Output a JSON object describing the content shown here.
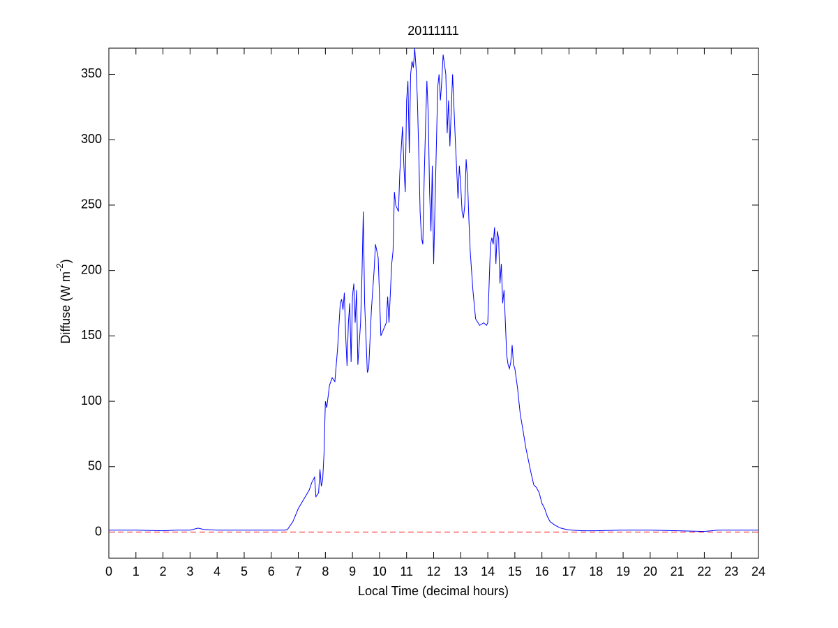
{
  "chart_data": {
    "type": "line",
    "title": "20111111",
    "xlabel": "Local Time (decimal hours)",
    "ylabel": {
      "text": "Diffuse (W m",
      "superscript": "-2",
      "suffix": ")"
    },
    "xlim": [
      0,
      24
    ],
    "xticks": [
      0,
      1,
      2,
      3,
      4,
      5,
      6,
      7,
      8,
      9,
      10,
      11,
      12,
      13,
      14,
      15,
      16,
      17,
      18,
      19,
      20,
      21,
      22,
      23,
      24
    ],
    "ylim": [
      -20,
      370
    ],
    "yticks": [
      0,
      50,
      100,
      150,
      200,
      250,
      300,
      350
    ],
    "grid": false,
    "reference_line": {
      "value": 0,
      "color": "#ff0000",
      "style": "dashed"
    },
    "series": [
      {
        "color": "#0000ff",
        "x": [
          0,
          1,
          2,
          2.5,
          3,
          3.3,
          3.5,
          4,
          5,
          6,
          6.5,
          6.6,
          6.8,
          7,
          7.2,
          7.4,
          7.5,
          7.6,
          7.65,
          7.75,
          7.8,
          7.85,
          7.9,
          7.95,
          8.0,
          8.05,
          8.15,
          8.25,
          8.35,
          8.45,
          8.55,
          8.6,
          8.65,
          8.7,
          8.75,
          8.8,
          8.85,
          8.9,
          8.95,
          9.0,
          9.05,
          9.1,
          9.15,
          9.2,
          9.3,
          9.35,
          9.4,
          9.45,
          9.55,
          9.6,
          9.7,
          9.8,
          9.85,
          9.95,
          10.05,
          10.15,
          10.25,
          10.3,
          10.35,
          10.45,
          10.5,
          10.55,
          10.6,
          10.7,
          10.75,
          10.85,
          10.9,
          10.95,
          11.0,
          11.05,
          11.1,
          11.15,
          11.2,
          11.25,
          11.3,
          11.35,
          11.4,
          11.45,
          11.5,
          11.55,
          11.6,
          11.65,
          11.7,
          11.75,
          11.8,
          11.85,
          11.9,
          11.95,
          12.0,
          12.05,
          12.15,
          12.2,
          12.25,
          12.3,
          12.35,
          12.45,
          12.5,
          12.55,
          12.6,
          12.7,
          12.8,
          12.9,
          12.95,
          13.0,
          13.05,
          13.1,
          13.15,
          13.2,
          13.25,
          13.3,
          13.35,
          13.45,
          13.55,
          13.7,
          13.85,
          13.95,
          14.0,
          14.05,
          14.1,
          14.15,
          14.2,
          14.25,
          14.3,
          14.35,
          14.4,
          14.45,
          14.5,
          14.55,
          14.6,
          14.65,
          14.7,
          14.75,
          14.8,
          14.85,
          14.9,
          14.95,
          15.0,
          15.1,
          15.2,
          15.3,
          15.4,
          15.5,
          15.6,
          15.7,
          15.8,
          15.9,
          16.0,
          16.1,
          16.2,
          16.3,
          16.5,
          16.7,
          16.9,
          17.1,
          17.5,
          18,
          19,
          20,
          21,
          22,
          22.5,
          23,
          24
        ],
        "values": [
          1.5,
          1.5,
          1,
          1.5,
          1.5,
          3,
          2,
          1.5,
          1.5,
          1.5,
          1.5,
          2,
          8,
          18,
          25,
          32,
          38,
          42,
          27,
          30,
          48,
          35,
          40,
          60,
          100,
          95,
          112,
          118,
          115,
          140,
          175,
          178,
          170,
          183,
          150,
          127,
          160,
          175,
          130,
          180,
          190,
          160,
          185,
          128,
          160,
          195,
          245,
          175,
          122,
          125,
          170,
          200,
          220,
          210,
          150,
          155,
          160,
          180,
          160,
          205,
          215,
          260,
          250,
          245,
          275,
          310,
          280,
          260,
          330,
          345,
          290,
          350,
          360,
          355,
          370,
          355,
          330,
          290,
          245,
          225,
          220,
          270,
          310,
          345,
          320,
          260,
          230,
          280,
          205,
          250,
          340,
          350,
          330,
          345,
          365,
          350,
          305,
          330,
          295,
          350,
          300,
          255,
          280,
          265,
          245,
          240,
          250,
          285,
          270,
          240,
          215,
          185,
          163,
          158,
          160,
          158,
          160,
          190,
          220,
          225,
          220,
          233,
          205,
          230,
          225,
          190,
          205,
          175,
          185,
          160,
          135,
          128,
          125,
          130,
          143,
          128,
          125,
          110,
          90,
          78,
          65,
          55,
          45,
          36,
          34,
          30,
          22,
          18,
          12,
          8,
          5,
          3,
          2,
          1.5,
          1,
          1,
          1.5,
          1.5,
          1,
          0.5,
          1.5,
          1.5,
          1.5
        ]
      }
    ]
  }
}
